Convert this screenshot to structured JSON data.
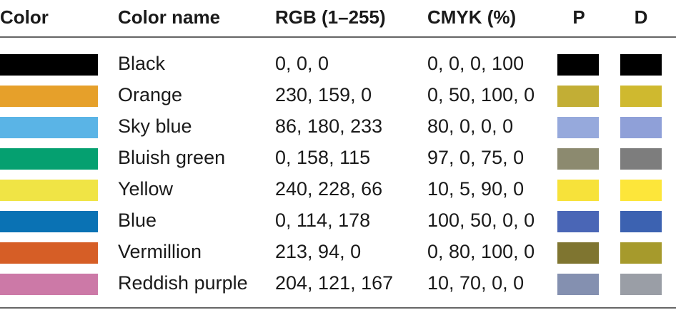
{
  "table": {
    "headers": [
      "Color",
      "Color name",
      "RGB (1–255)",
      "CMYK (%)",
      "P",
      "D"
    ],
    "rows": [
      {
        "swatch": "#000000",
        "name": "Black",
        "rgb": "0, 0, 0",
        "cmyk": "0, 0, 0, 100",
        "p": "#000000",
        "d": "#000000"
      },
      {
        "swatch": "#e6a02a",
        "name": "Orange",
        "rgb": "230, 159, 0",
        "cmyk": "0, 50, 100, 0",
        "p": "#c2ae35",
        "d": "#cfb92f"
      },
      {
        "swatch": "#5ab4e6",
        "name": "Sky blue",
        "rgb": "86, 180, 233",
        "cmyk": "80, 0, 0, 0",
        "p": "#96a9dc",
        "d": "#8fa0d8"
      },
      {
        "swatch": "#05a070",
        "name": "Bluish green",
        "rgb": "0, 158, 115",
        "cmyk": "97, 0, 75, 0",
        "p": "#8c8a6f",
        "d": "#7d7d7d"
      },
      {
        "swatch": "#f0e445",
        "name": "Yellow",
        "rgb": "240, 228, 66",
        "cmyk": "10, 5, 90, 0",
        "p": "#f7e23a",
        "d": "#fde63a"
      },
      {
        "swatch": "#0a72b4",
        "name": "Blue",
        "rgb": "0, 114, 178",
        "cmyk": "100, 50, 0, 0",
        "p": "#4a66b6",
        "d": "#3c62b1"
      },
      {
        "swatch": "#d65e26",
        "name": "Vermillion",
        "rgb": "213, 94, 0",
        "cmyk": "0, 80, 100, 0",
        "p": "#7f7530",
        "d": "#a69a2c"
      },
      {
        "swatch": "#cc79a7",
        "name": "Reddish purple",
        "rgb": "204, 121, 167",
        "cmyk": "10, 70, 0, 0",
        "p": "#8490b0",
        "d": "#9a9ea6"
      }
    ]
  }
}
